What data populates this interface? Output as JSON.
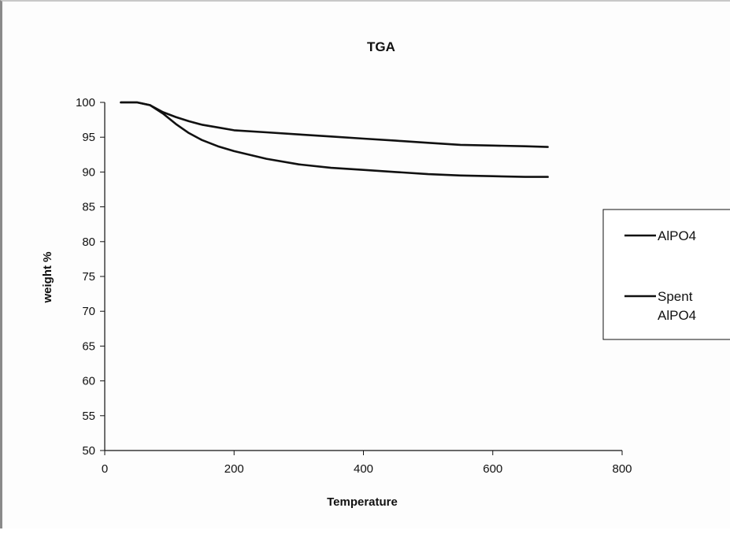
{
  "chart_data": {
    "type": "line",
    "title": "TGA",
    "xlabel": "Temperature",
    "ylabel": "weight %",
    "xlim": [
      0,
      800
    ],
    "ylim": [
      50,
      100
    ],
    "x_ticks": [
      "0",
      "200",
      "400",
      "600",
      "800"
    ],
    "y_ticks": [
      "50",
      "55",
      "60",
      "65",
      "70",
      "75",
      "80",
      "85",
      "90",
      "95",
      "100"
    ],
    "grid": false,
    "legend_position": "right",
    "series": [
      {
        "name": "AlPO4",
        "color": "#111111",
        "x": [
          25,
          50,
          70,
          90,
          110,
          130,
          150,
          175,
          200,
          250,
          300,
          350,
          400,
          450,
          500,
          550,
          600,
          650,
          685
        ],
        "y": [
          100,
          100,
          99.6,
          98.6,
          97.9,
          97.3,
          96.8,
          96.4,
          96.0,
          95.7,
          95.4,
          95.1,
          94.8,
          94.5,
          94.2,
          93.9,
          93.8,
          93.7,
          93.6
        ]
      },
      {
        "name": "Spent AlPO4",
        "color": "#111111",
        "x": [
          25,
          50,
          70,
          90,
          110,
          130,
          150,
          175,
          200,
          250,
          300,
          350,
          400,
          450,
          500,
          550,
          600,
          650,
          685
        ],
        "y": [
          100,
          100,
          99.6,
          98.4,
          96.9,
          95.6,
          94.6,
          93.7,
          93.0,
          91.9,
          91.1,
          90.6,
          90.3,
          90.0,
          89.7,
          89.5,
          89.4,
          89.3,
          89.3
        ]
      }
    ]
  }
}
